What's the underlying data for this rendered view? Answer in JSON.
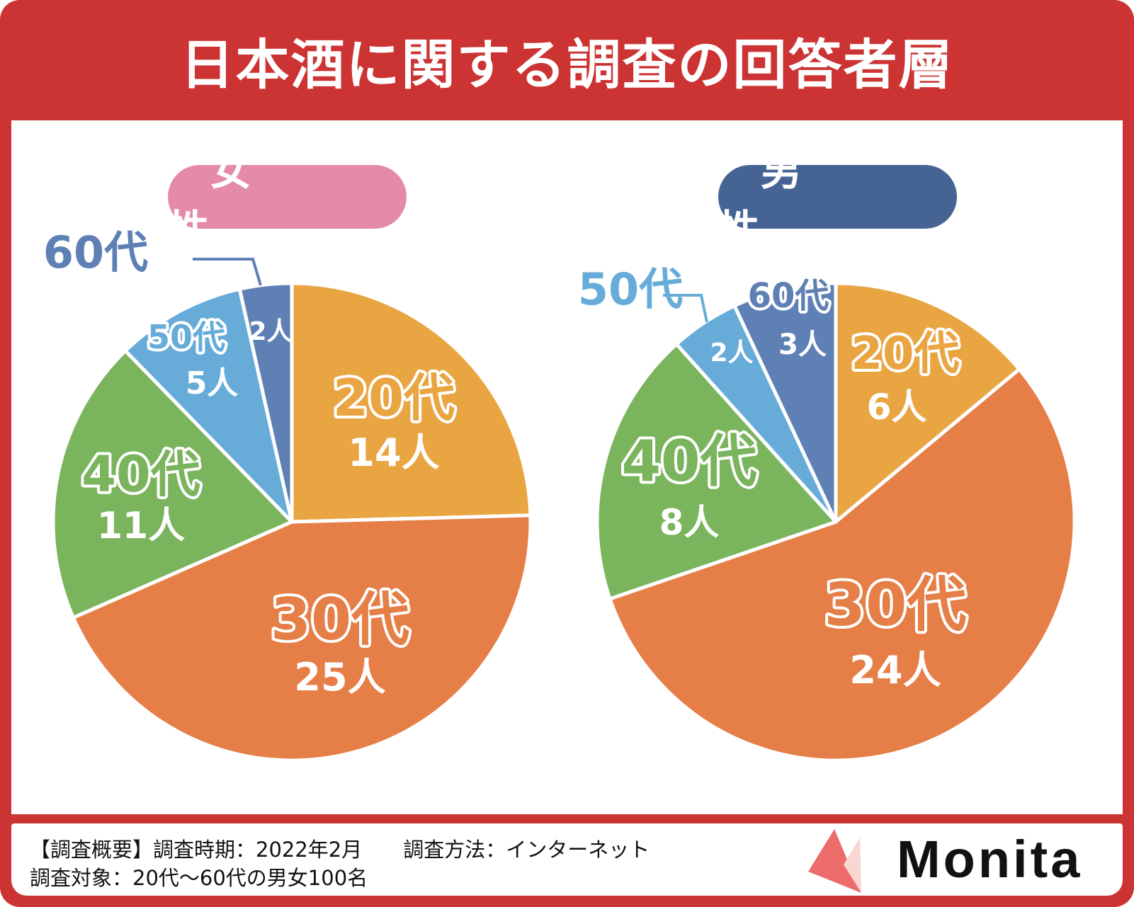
{
  "title": "日本酒に関する調査の回答者層",
  "colors": {
    "frame": "#cc3333",
    "female_pill": "#e58aab",
    "male_pill": "#456494"
  },
  "chart_data": [
    {
      "type": "pie",
      "title": "女　性",
      "unit": "人",
      "start": "top",
      "direction": "clockwise",
      "slices": [
        {
          "label": "20代",
          "value": 14,
          "count_label": "14人",
          "color": "#eaa543"
        },
        {
          "label": "30代",
          "value": 25,
          "count_label": "25人",
          "color": "#e57f47"
        },
        {
          "label": "40代",
          "value": 11,
          "count_label": "11人",
          "color": "#7ab45d"
        },
        {
          "label": "50代",
          "value": 5,
          "count_label": "5人",
          "color": "#67acd9"
        },
        {
          "label": "60代",
          "value": 2,
          "count_label": "2人",
          "color": "#5f80b5"
        }
      ]
    },
    {
      "type": "pie",
      "title": "男　性",
      "unit": "人",
      "start": "top",
      "direction": "clockwise",
      "slices": [
        {
          "label": "20代",
          "value": 6,
          "count_label": "6人",
          "color": "#eaa543"
        },
        {
          "label": "30代",
          "value": 24,
          "count_label": "24人",
          "color": "#e57f47"
        },
        {
          "label": "40代",
          "value": 8,
          "count_label": "8人",
          "color": "#7ab45d"
        },
        {
          "label": "50代",
          "value": 2,
          "count_label": "2人",
          "color": "#67acd9"
        },
        {
          "label": "60代",
          "value": 3,
          "count_label": "3人",
          "color": "#5f80b5"
        }
      ]
    }
  ],
  "footer": {
    "line1": "【調査概要】調査時期：2022年2月　　調査方法：インターネット",
    "line2": "調査対象：20代～60代の男女100名",
    "logo": "Monita"
  }
}
